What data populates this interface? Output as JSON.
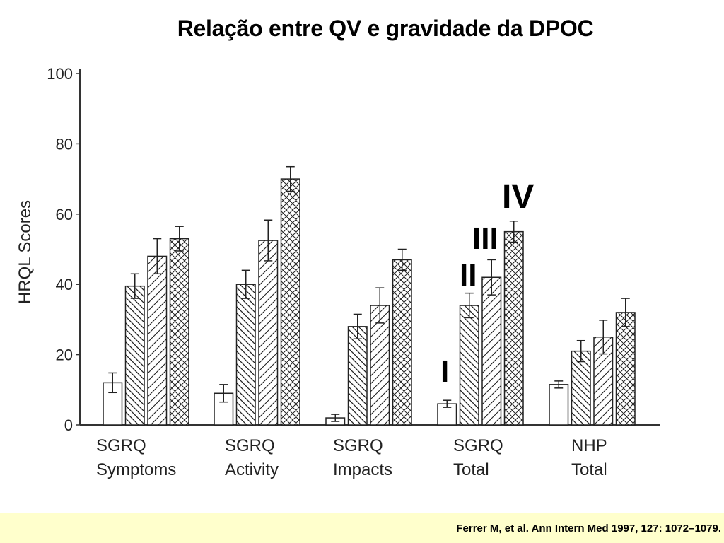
{
  "title": "Relação entre QV e gravidade da DPOC",
  "citation": "Ferrer M, et al. Ann Intern Med 1997, 127: 1072–1079.",
  "chart_data": {
    "type": "bar",
    "ylabel": "HRQL Scores",
    "ylim": [
      0,
      100
    ],
    "yticks": [
      0,
      20,
      40,
      60,
      80,
      100
    ],
    "grid": false,
    "categories": [
      [
        "SGRQ",
        "Symptoms"
      ],
      [
        "SGRQ",
        "Activity"
      ],
      [
        "SGRQ",
        "Impacts"
      ],
      [
        "SGRQ",
        "Total"
      ],
      [
        "NHP",
        "Total"
      ]
    ],
    "series": [
      {
        "name": "I",
        "pattern": "empty",
        "values": [
          12,
          9,
          2,
          6,
          11.5
        ],
        "errors": [
          2.8,
          2.5,
          1.0,
          1.0,
          1.0
        ]
      },
      {
        "name": "II",
        "pattern": "backslash",
        "values": [
          39.5,
          40,
          28,
          34,
          21
        ],
        "errors": [
          3.5,
          4.0,
          3.5,
          3.5,
          3.0
        ]
      },
      {
        "name": "III",
        "pattern": "slash",
        "values": [
          48,
          52.5,
          34,
          42,
          25
        ],
        "errors": [
          5.0,
          5.8,
          5.0,
          5.0,
          4.8
        ]
      },
      {
        "name": "IV",
        "pattern": "crosshatch",
        "values": [
          53,
          70,
          47,
          55,
          32
        ],
        "errors": [
          3.5,
          3.5,
          3.0,
          3.0,
          4.0
        ]
      }
    ],
    "annotations": [
      "I",
      "II",
      "III",
      "IV"
    ]
  }
}
